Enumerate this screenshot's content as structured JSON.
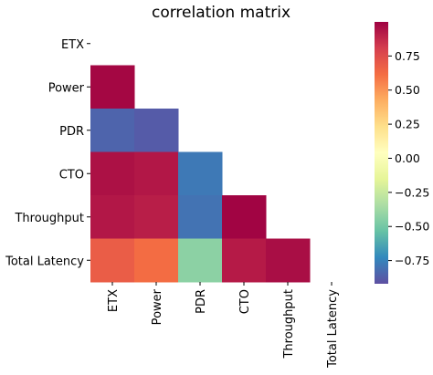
{
  "chart_data": {
    "type": "heatmap",
    "title": "correlation matrix",
    "xlabel": "",
    "ylabel": "",
    "rows": [
      "ETX",
      "Power",
      "PDR",
      "CTO",
      "Throughput",
      "Total Latency"
    ],
    "columns": [
      "ETX",
      "Power",
      "PDR",
      "CTO",
      "Throughput",
      "Total Latency"
    ],
    "mask": "upper-triangle-including-diagonal",
    "matrix": [
      [
        null,
        null,
        null,
        null,
        null,
        null
      ],
      [
        0.98,
        null,
        null,
        null,
        null,
        null
      ],
      [
        -0.85,
        -0.88,
        null,
        null,
        null,
        null
      ],
      [
        0.95,
        0.93,
        -0.78,
        null,
        null,
        null
      ],
      [
        0.93,
        0.91,
        -0.8,
        0.99,
        null,
        null
      ],
      [
        0.68,
        0.62,
        -0.43,
        0.92,
        0.96,
        null
      ]
    ],
    "colormap": "Spectral",
    "vmin": -0.92,
    "vmax": 1.0,
    "colorbar": {
      "ticks": [
        0.75,
        0.5,
        0.25,
        0.0,
        -0.25,
        -0.5,
        -0.75
      ],
      "tick_labels": [
        "0.75",
        "0.50",
        "0.25",
        "0.00",
        "−0.25",
        "−0.50",
        "−0.75"
      ],
      "position": "right"
    },
    "grid": false
  }
}
